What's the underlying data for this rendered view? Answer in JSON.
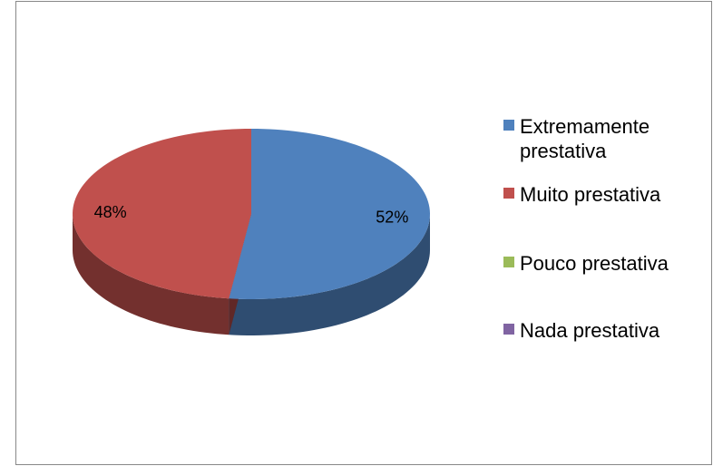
{
  "chart_data": {
    "type": "pie",
    "categories": [
      "Extremamente prestativa",
      "Muito prestativa",
      "Pouco prestativa",
      "Nada prestativa"
    ],
    "values": [
      52,
      48,
      0,
      0
    ],
    "value_labels": [
      "52%",
      "48%",
      null,
      null
    ],
    "colors": [
      "#4f81bd",
      "#c0504d",
      "#9bbb59",
      "#8064a2"
    ],
    "legend": "right"
  }
}
